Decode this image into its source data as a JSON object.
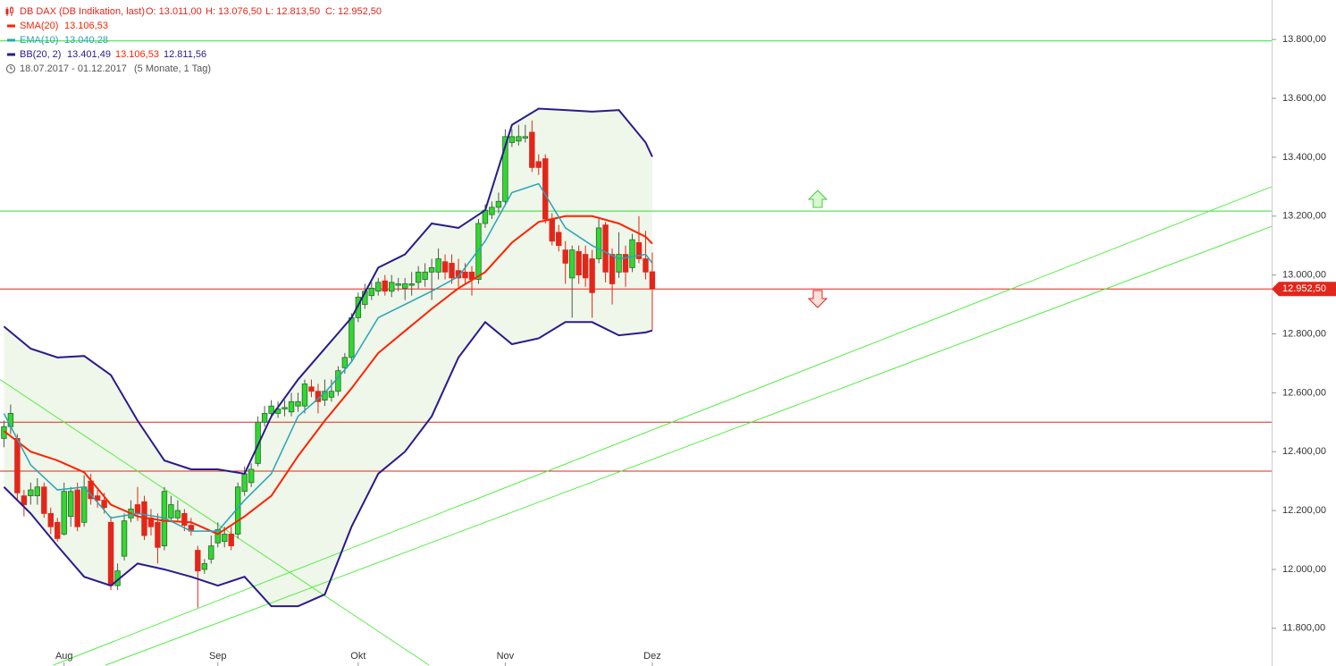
{
  "chart_data": {
    "type": "candlestick",
    "title": "DB DAX (DB Indikation, last)",
    "title_color": "#e3261b",
    "ohlc_labels": [
      "O: 13.011,00",
      "H: 13.076,50",
      "L: 12.813,50",
      "C: 12.952,50"
    ],
    "period": "18.07.2017 - 01.12.2017",
    "period_note": "(5 Monate, 1 Tag)",
    "categories": [
      null,
      null,
      null,
      null,
      null,
      null,
      null,
      null,
      null,
      "Aug",
      null,
      null,
      null,
      null,
      null,
      null,
      null,
      null,
      null,
      null,
      null,
      null,
      null,
      null,
      null,
      null,
      null,
      null,
      null,
      null,
      null,
      null,
      "Sep",
      null,
      null,
      null,
      null,
      null,
      null,
      null,
      null,
      null,
      null,
      null,
      null,
      null,
      null,
      null,
      null,
      null,
      null,
      null,
      null,
      "Okt",
      null,
      null,
      null,
      null,
      null,
      null,
      null,
      null,
      null,
      null,
      null,
      null,
      null,
      null,
      null,
      null,
      null,
      null,
      null,
      null,
      null,
      "Nov",
      null,
      null,
      null,
      null,
      null,
      null,
      null,
      null,
      null,
      null,
      null,
      null,
      null,
      null,
      null,
      null,
      null,
      null,
      null,
      null,
      null,
      "Dez"
    ],
    "xlim": [
      -0.59,
      189.66
    ],
    "ylim": [
      11672,
      13934
    ],
    "yticks": [
      {
        "value": 11800,
        "label": "11.800,00"
      },
      {
        "value": 12000,
        "label": "12.000,00"
      },
      {
        "value": 12200,
        "label": "12.200,00"
      },
      {
        "value": 12400,
        "label": "12.400,00"
      },
      {
        "value": 12600,
        "label": "12.600,00"
      },
      {
        "value": 12800,
        "label": "12.800,00"
      },
      {
        "value": 13000,
        "label": "13.000,00"
      },
      {
        "value": 13200,
        "label": "13.200,00"
      },
      {
        "value": 13400,
        "label": "13.400,00"
      },
      {
        "value": 13600,
        "label": "13.600,00"
      },
      {
        "value": 13800,
        "label": "13.800,00"
      }
    ],
    "up_color": "#33d633",
    "down_color": "#e3261b",
    "candles": {
      "open": [
        12445,
        12485,
        12445,
        12250,
        12250,
        12250,
        12280,
        12190,
        12160,
        12120,
        12180,
        12270,
        12160,
        12300,
        12250,
        12235,
        12160,
        11945,
        12045,
        12175,
        12220,
        12230,
        12175,
        12160,
        12080,
        12175,
        12175,
        12190,
        12150,
        12065,
        12000,
        12035,
        12090,
        12095,
        12120,
        12120,
        12265,
        12295,
        12360,
        12500,
        12530,
        12530,
        12545,
        12535,
        12555,
        12555,
        12620,
        12605,
        12575,
        12585,
        12605,
        12685,
        12720,
        12855,
        12900,
        12930,
        12945,
        12980,
        12945,
        12965,
        12955,
        12965,
        12975,
        12985,
        13010,
        13010,
        13045,
        13040,
        13015,
        13010,
        13010,
        12985,
        13175,
        13205,
        13230,
        13250,
        13450,
        13455,
        13465,
        13485,
        13385,
        13395,
        13190,
        13145,
        13085,
        12990,
        13080,
        13070,
        13055,
        13055,
        13170,
        13070,
        13010,
        13070,
        13025,
        13110,
        13055,
        13011
      ],
      "high": [
        12505,
        12560,
        12460,
        12270,
        12295,
        12310,
        12295,
        12210,
        12175,
        12295,
        12280,
        12295,
        12320,
        12325,
        12270,
        12260,
        12180,
        12020,
        12190,
        12235,
        12280,
        12250,
        12205,
        12190,
        12280,
        12250,
        12235,
        12205,
        12175,
        12080,
        12035,
        12115,
        12160,
        12145,
        12145,
        12295,
        12350,
        12360,
        12520,
        12555,
        12575,
        12570,
        12575,
        12600,
        12600,
        12645,
        12645,
        12630,
        12645,
        12645,
        12690,
        12735,
        12870,
        12940,
        12970,
        12975,
        12990,
        13000,
        13000,
        12990,
        12990,
        13010,
        13030,
        13040,
        13055,
        13090,
        13070,
        13070,
        13055,
        13040,
        13030,
        13190,
        13240,
        13250,
        13280,
        13495,
        13495,
        13510,
        13510,
        13525,
        13410,
        13410,
        13210,
        13170,
        13115,
        13100,
        13100,
        13100,
        13085,
        13190,
        13180,
        13090,
        13145,
        13100,
        13140,
        13200,
        13150,
        13076.5
      ],
      "low": [
        12415,
        12460,
        12235,
        12180,
        12220,
        12220,
        12175,
        12120,
        12095,
        12115,
        12145,
        12130,
        12145,
        12220,
        12210,
        12190,
        11930,
        11930,
        12030,
        12160,
        12165,
        12100,
        12115,
        12020,
        12065,
        12160,
        12160,
        12130,
        12115,
        11870,
        11985,
        12020,
        12075,
        12075,
        12065,
        12105,
        12250,
        12280,
        12350,
        12485,
        12515,
        12515,
        12520,
        12520,
        12535,
        12530,
        12585,
        12530,
        12555,
        12570,
        12590,
        12665,
        12705,
        12840,
        12885,
        12915,
        12930,
        12930,
        12925,
        12945,
        12915,
        12930,
        12955,
        12960,
        12915,
        12985,
        12985,
        12970,
        12960,
        12970,
        12930,
        12970,
        13160,
        13190,
        13210,
        13235,
        13435,
        13440,
        13450,
        13350,
        13340,
        13175,
        13100,
        13080,
        12970,
        12855,
        12970,
        12960,
        12855,
        13040,
        12975,
        12900,
        12990,
        12960,
        13010,
        13040,
        12985,
        12813.5
      ],
      "close": [
        12485,
        12530,
        12260,
        12220,
        12270,
        12280,
        12190,
        12145,
        12105,
        12265,
        12265,
        12145,
        12280,
        12240,
        12235,
        12210,
        11945,
        11995,
        12165,
        12205,
        12190,
        12115,
        12145,
        12075,
        12265,
        12220,
        12200,
        12150,
        12130,
        11995,
        12020,
        12080,
        12135,
        12120,
        12080,
        12280,
        12325,
        12340,
        12500,
        12530,
        12555,
        12545,
        12550,
        12570,
        12570,
        12630,
        12605,
        12570,
        12605,
        12605,
        12675,
        12720,
        12855,
        12925,
        12945,
        12955,
        12975,
        12945,
        12975,
        12970,
        12970,
        12970,
        13010,
        13010,
        13025,
        13055,
        13010,
        12990,
        12990,
        12990,
        12985,
        13175,
        13220,
        13230,
        13250,
        13470,
        13470,
        13470,
        13470,
        13365,
        13365,
        13190,
        13115,
        13100,
        13040,
        13085,
        13000,
        12990,
        12940,
        13160,
        13010,
        12970,
        13070,
        13010,
        13120,
        13055,
        13010,
        12952.5
      ]
    },
    "indicators": [
      {
        "name": "SMA(20)",
        "color": "#ff2200",
        "label": "13.106,53",
        "x": [
          0,
          4,
          8,
          12,
          16,
          20,
          24,
          28,
          32,
          36,
          40,
          44,
          48,
          52,
          56,
          60,
          64,
          68,
          72,
          76,
          80,
          84,
          88,
          92,
          96,
          97
        ],
        "values": [
          12470,
          12400,
          12370,
          12330,
          12220,
          12180,
          12165,
          12160,
          12120,
          12180,
          12250,
          12385,
          12505,
          12615,
          12735,
          12810,
          12885,
          12955,
          13010,
          13110,
          13180,
          13200,
          13200,
          13175,
          13130,
          13106.53
        ]
      },
      {
        "name": "EMA(10)",
        "color": "#2aa3b8",
        "label": "13.040,28",
        "x": [
          0,
          4,
          8,
          12,
          16,
          20,
          24,
          28,
          32,
          36,
          40,
          44,
          48,
          52,
          56,
          60,
          64,
          68,
          72,
          76,
          80,
          84,
          88,
          92,
          96,
          97
        ],
        "values": [
          12530,
          12355,
          12270,
          12280,
          12175,
          12190,
          12175,
          12130,
          12130,
          12235,
          12325,
          12520,
          12600,
          12705,
          12855,
          12900,
          12945,
          12995,
          13115,
          13280,
          13310,
          13160,
          13100,
          13055,
          13070,
          13040.28
        ]
      },
      {
        "name": "BB(20, 2)",
        "color": "#2b1a8c",
        "band_color": "#eef7e9",
        "labels": [
          "13.401,49",
          "13.106,53",
          "12.811,56"
        ],
        "x": [
          0,
          4,
          8,
          12,
          16,
          20,
          24,
          28,
          32,
          36,
          40,
          44,
          48,
          52,
          56,
          60,
          64,
          68,
          72,
          76,
          80,
          84,
          88,
          92,
          96,
          97
        ],
        "upper": [
          12825,
          12750,
          12720,
          12725,
          12660,
          12505,
          12370,
          12340,
          12340,
          12325,
          12520,
          12645,
          12750,
          12855,
          13025,
          13070,
          13175,
          13160,
          13220,
          13510,
          13565,
          13560,
          13555,
          13560,
          13450,
          13401.49
        ],
        "lower": [
          12280,
          12190,
          12080,
          11975,
          11945,
          12020,
          12000,
          11975,
          11945,
          11975,
          11875,
          11875,
          11915,
          12145,
          12325,
          12400,
          12520,
          12720,
          12840,
          12765,
          12785,
          12840,
          12840,
          12795,
          12805,
          12811.56
        ]
      }
    ],
    "hlines": [
      {
        "value": 13795,
        "color": "#33dd33"
      },
      {
        "value": 13217,
        "color": "#33dd33"
      },
      {
        "value": 12952.5,
        "color": "#e3261b"
      },
      {
        "value": 12500,
        "color": "#e3261b"
      },
      {
        "value": 12334,
        "color": "#e3261b"
      }
    ],
    "last_price_label": "12.952,50",
    "trendlines": [
      {
        "x": [
          -0.59,
          63.6
        ],
        "y": [
          12645,
          11675
        ],
        "color": "#55ee44"
      },
      {
        "x": [
          7.4,
          189.66
        ],
        "y": [
          11675,
          13300
        ],
        "color": "#55ee44"
      },
      {
        "x": [
          15.2,
          189.66
        ],
        "y": [
          11675,
          13165
        ],
        "color": "#55ee44"
      }
    ]
  }
}
